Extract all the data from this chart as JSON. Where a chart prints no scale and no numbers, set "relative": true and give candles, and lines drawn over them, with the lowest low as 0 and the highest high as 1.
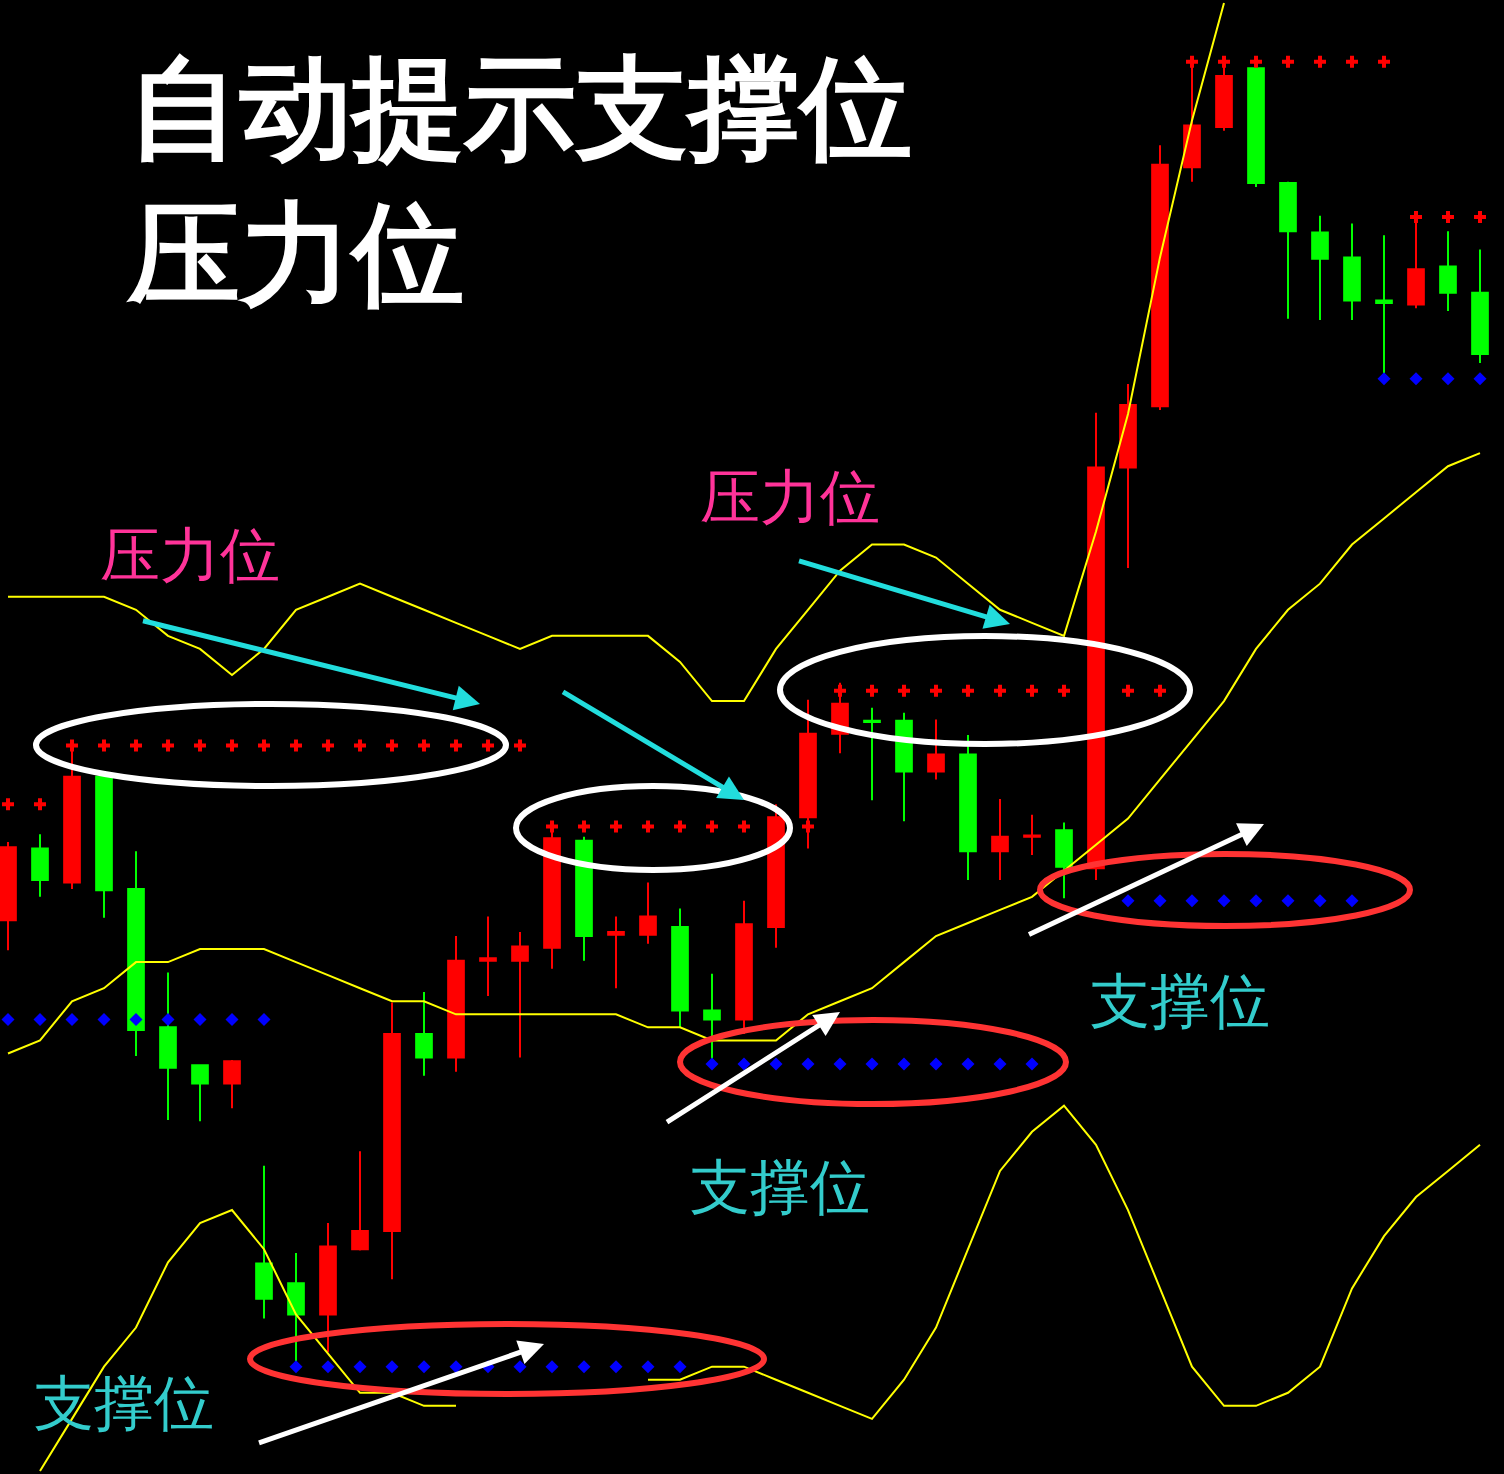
{
  "chart_data": {
    "type": "candlestick",
    "relative": true,
    "title": "自动提示支撑位压力位",
    "annotations": [
      "压力位",
      "压力位",
      "支撑位",
      "支撑位",
      "支撑位"
    ],
    "categories": [
      null,
      null,
      null,
      null,
      null,
      null,
      null,
      null,
      null,
      null,
      null,
      null,
      null,
      null,
      null,
      null,
      null,
      null,
      null,
      null,
      null,
      null,
      null,
      null,
      null,
      null,
      null,
      null,
      null,
      null,
      null,
      null,
      null,
      null,
      null,
      null,
      null,
      null,
      null,
      null,
      null,
      null,
      null,
      null,
      null,
      null,
      null
    ],
    "ohlc": [
      [
        0.342,
        0.402,
        0.319,
        0.398
      ],
      [
        0.397,
        0.408,
        0.36,
        0.373
      ],
      [
        0.371,
        0.479,
        0.366,
        0.452
      ],
      [
        0.452,
        0.456,
        0.344,
        0.365
      ],
      [
        0.366,
        0.395,
        0.238,
        0.258
      ],
      [
        0.26,
        0.302,
        0.189,
        0.229
      ],
      [
        0.231,
        0.231,
        0.188,
        0.217
      ],
      [
        0.217,
        0.235,
        0.198,
        0.234
      ],
      [
        0.079,
        0.154,
        0.037,
        0.052
      ],
      [
        0.064,
        0.087,
        0.0,
        0.04
      ],
      [
        0.04,
        0.11,
        0.011,
        0.092
      ],
      [
        0.09,
        0.165,
        0.089,
        0.104
      ],
      [
        0.104,
        0.279,
        0.067,
        0.255
      ],
      [
        0.255,
        0.287,
        0.223,
        0.237
      ],
      [
        0.237,
        0.33,
        0.226,
        0.311
      ],
      [
        0.311,
        0.345,
        0.284,
        0.313
      ],
      [
        0.311,
        0.333,
        0.237,
        0.322
      ],
      [
        0.321,
        0.412,
        0.305,
        0.405
      ],
      [
        0.403,
        0.406,
        0.311,
        0.33
      ],
      [
        0.331,
        0.345,
        0.29,
        0.333
      ],
      [
        0.331,
        0.371,
        0.324,
        0.345
      ],
      [
        0.337,
        0.351,
        0.26,
        0.273
      ],
      [
        0.273,
        0.301,
        0.235,
        0.266
      ],
      [
        0.266,
        0.357,
        0.255,
        0.339
      ],
      [
        0.337,
        0.431,
        0.321,
        0.421
      ],
      [
        0.421,
        0.511,
        0.397,
        0.485
      ],
      [
        0.485,
        0.524,
        0.47,
        0.508
      ],
      [
        0.495,
        0.505,
        0.434,
        0.494
      ],
      [
        0.495,
        0.501,
        0.418,
        0.456
      ],
      [
        0.456,
        0.496,
        0.45,
        0.469
      ],
      [
        0.469,
        0.484,
        0.373,
        0.395
      ],
      [
        0.395,
        0.435,
        0.373,
        0.406
      ],
      [
        0.406,
        0.423,
        0.392,
        0.407
      ],
      [
        0.411,
        0.417,
        0.359,
        0.383
      ],
      [
        0.382,
        0.731,
        0.373,
        0.689
      ],
      [
        0.689,
        0.753,
        0.612,
        0.737
      ],
      [
        0.736,
        0.936,
        0.733,
        0.921
      ],
      [
        0.919,
        1.0,
        0.908,
        0.951
      ],
      [
        0.95,
        1.0,
        0.947,
        0.989
      ],
      [
        0.995,
        1.0,
        0.904,
        0.907
      ],
      [
        0.907,
        0.908,
        0.803,
        0.87
      ],
      [
        0.869,
        0.882,
        0.802,
        0.849
      ],
      [
        0.85,
        0.876,
        0.802,
        0.817
      ],
      [
        0.817,
        0.867,
        0.759,
        0.815
      ],
      [
        0.814,
        0.881,
        0.811,
        0.841
      ],
      [
        0.843,
        0.87,
        0.809,
        0.823
      ],
      [
        0.823,
        0.856,
        0.769,
        0.776
      ]
    ],
    "colors": [
      "#ff0000",
      "#00ff00",
      "#ff0000",
      "#00ff00",
      "#00ff00",
      "#00ff00",
      "#00ff00",
      "#ff0000",
      "#00ff00",
      "#00ff00",
      "#ff0000",
      "#ff0000",
      "#ff0000",
      "#00ff00",
      "#ff0000",
      "#ff0000",
      "#ff0000",
      "#ff0000",
      "#00ff00",
      "#ff0000",
      "#ff0000",
      "#00ff00",
      "#00ff00",
      "#ff0000",
      "#ff0000",
      "#ff0000",
      "#ff0000",
      "#00ff00",
      "#00ff00",
      "#ff0000",
      "#00ff00",
      "#ff0000",
      "#ff0000",
      "#00ff00",
      "#ff0000",
      "#ff0000",
      "#ff0000",
      "#ff0000",
      "#ff0000",
      "#00ff00",
      "#00ff00",
      "#00ff00",
      "#00ff00",
      "#00ff00",
      "#ff0000",
      "#00ff00",
      "#00ff00"
    ],
    "series": [
      {
        "type": "line",
        "color": "#ffff00",
        "values": [
          0.59,
          0.59,
          0.59,
          0.59,
          0.58,
          0.56,
          0.55,
          0.53,
          0.55,
          0.58,
          0.59,
          0.6,
          0.59,
          0.58,
          0.57,
          0.56,
          0.55,
          0.56,
          0.56,
          0.56,
          0.56,
          0.54,
          0.51,
          0.51,
          0.55,
          0.58,
          0.61,
          0.63,
          0.63,
          0.62,
          0.6,
          0.58,
          0.57,
          0.56,
          0.64,
          0.73,
          0.85,
          0.955,
          1.045,
          null,
          null,
          null,
          null,
          null,
          null,
          null,
          null
        ]
      },
      {
        "type": "line",
        "color": "#ffff00",
        "values": [
          0.24,
          0.25,
          0.28,
          0.29,
          0.31,
          0.31,
          0.32,
          0.32,
          0.32,
          0.31,
          0.3,
          0.29,
          0.28,
          0.28,
          0.27,
          0.27,
          0.27,
          0.27,
          0.27,
          0.27,
          0.26,
          0.26,
          0.25,
          0.25,
          0.25,
          0.27,
          0.28,
          0.29,
          0.31,
          0.33,
          0.34,
          0.35,
          0.36,
          0.38,
          0.4,
          0.42,
          0.45,
          0.48,
          0.51,
          0.55,
          0.58,
          0.6,
          0.63,
          0.65,
          0.67,
          0.69,
          0.7
        ]
      },
      {
        "type": "line",
        "color": "#ffff00",
        "values": [
          null,
          -0.08,
          -0.04,
          0.0,
          0.03,
          0.08,
          0.11,
          0.12,
          0.09,
          0.04,
          0.01,
          -0.02,
          -0.02,
          -0.03,
          -0.03,
          null,
          null,
          null,
          null,
          null,
          -0.01,
          -0.01,
          0.0,
          0.0,
          -0.01,
          -0.02,
          -0.03,
          -0.04,
          -0.01,
          0.03,
          0.09,
          0.15,
          0.18,
          0.2,
          0.17,
          0.12,
          0.06,
          0.0,
          -0.03,
          -0.03,
          -0.02,
          0.0,
          0.06,
          0.1,
          0.13,
          0.15,
          0.17
        ]
      },
      {
        "type": "scatter",
        "marker": "cross",
        "color": "#ff0000",
        "values": [
          0.431,
          0.431,
          0.476,
          0.476,
          0.476,
          0.476,
          0.476,
          0.476,
          0.476,
          0.476,
          0.476,
          0.476,
          0.476,
          0.476,
          0.476,
          0.476,
          0.476,
          0.414,
          0.414,
          0.414,
          0.414,
          0.414,
          0.414,
          0.414,
          null,
          0.414,
          0.518,
          0.518,
          0.518,
          0.518,
          0.518,
          0.518,
          0.518,
          0.518,
          null,
          0.518,
          0.518,
          1.0,
          1.0,
          1.0,
          1.0,
          1.0,
          1.0,
          1.0,
          0.881,
          0.881,
          0.881
        ]
      },
      {
        "type": "scatter",
        "marker": "diamond",
        "color": "#0000ff",
        "values": [
          0.266,
          0.266,
          0.266,
          0.266,
          0.266,
          0.266,
          0.266,
          0.266,
          0.266,
          0.0,
          0.0,
          0.0,
          0.0,
          0.0,
          0.0,
          0.0,
          0.0,
          0.0,
          0.0,
          0.0,
          0.0,
          0.0,
          0.232,
          0.232,
          0.232,
          0.232,
          0.232,
          0.232,
          0.232,
          0.232,
          0.232,
          0.232,
          0.232,
          null,
          null,
          0.357,
          0.357,
          0.357,
          0.357,
          0.357,
          0.357,
          0.357,
          0.357,
          0.757,
          0.757,
          0.757,
          0.757
        ]
      }
    ]
  }
}
